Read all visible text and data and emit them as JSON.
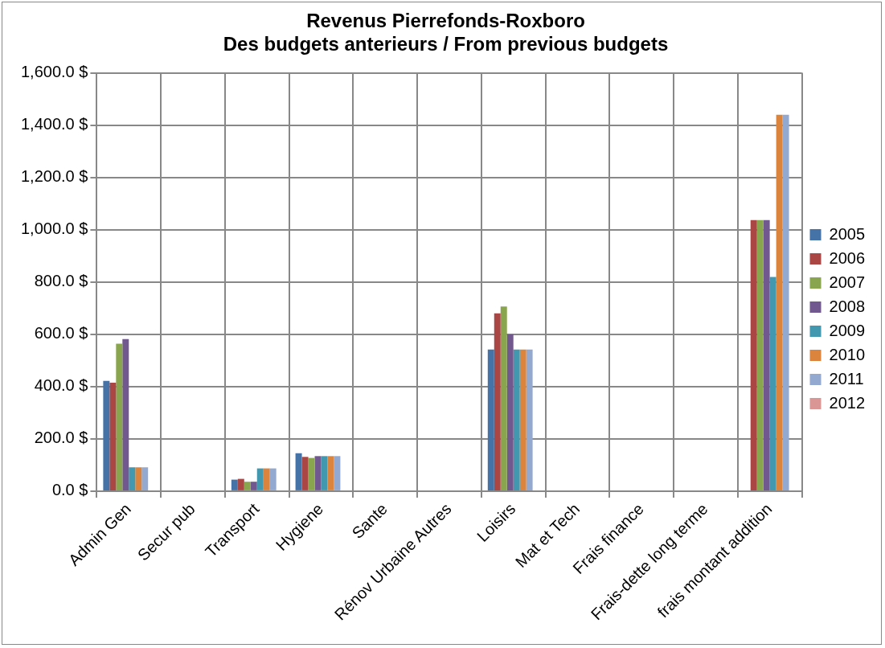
{
  "chart_data": {
    "type": "bar",
    "title": [
      "Revenus Pierrefonds-Roxboro",
      "Des budgets anterieurs / From previous budgets"
    ],
    "categories": [
      "Admin Gen",
      "Secur pub",
      "Transport",
      "Hygiene",
      "Sante",
      "Rénov Urbaine Autres",
      "Loisirs",
      "Mat et Tech",
      "Frais finance",
      "Frais-dette long terme",
      "frais montant addition"
    ],
    "series": [
      {
        "name": "2005",
        "color": "#4572a7",
        "values": [
          422,
          null,
          44,
          145,
          null,
          null,
          542,
          null,
          null,
          null,
          null
        ]
      },
      {
        "name": "2006",
        "color": "#aa4643",
        "values": [
          415,
          null,
          47,
          131,
          null,
          null,
          680,
          null,
          null,
          null,
          1037
        ]
      },
      {
        "name": "2007",
        "color": "#89a54e",
        "values": [
          564,
          null,
          36,
          127,
          null,
          null,
          706,
          null,
          null,
          null,
          1037
        ]
      },
      {
        "name": "2008",
        "color": "#71588f",
        "values": [
          582,
          null,
          36,
          134,
          null,
          null,
          600,
          null,
          null,
          null,
          1037
        ]
      },
      {
        "name": "2009",
        "color": "#4198af",
        "values": [
          91,
          null,
          87,
          134,
          null,
          null,
          542,
          null,
          null,
          null,
          819
        ]
      },
      {
        "name": "2010",
        "color": "#db843d",
        "values": [
          91,
          null,
          87,
          134,
          null,
          null,
          542,
          null,
          null,
          null,
          1440
        ]
      },
      {
        "name": "2011",
        "color": "#93a9cf",
        "values": [
          91,
          null,
          87,
          134,
          null,
          null,
          542,
          null,
          null,
          null,
          1440
        ]
      },
      {
        "name": "2012",
        "color": "#d99694",
        "values": [
          null,
          null,
          null,
          null,
          null,
          null,
          null,
          null,
          null,
          null,
          null
        ]
      }
    ],
    "ylim": [
      0,
      1600
    ],
    "yticks": [
      {
        "value": 0,
        "label": "0.0 $"
      },
      {
        "value": 200,
        "label": "200.0 $"
      },
      {
        "value": 400,
        "label": "400.0 $"
      },
      {
        "value": 600,
        "label": "600.0 $"
      },
      {
        "value": 800,
        "label": "800.0 $"
      },
      {
        "value": 1000,
        "label": "1,000.0 $"
      },
      {
        "value": 1200,
        "label": "1,200.0 $"
      },
      {
        "value": 1400,
        "label": "1,400.0 $"
      },
      {
        "value": 1600,
        "label": "1,600.0 $"
      }
    ],
    "grid": true,
    "legend": "right"
  }
}
